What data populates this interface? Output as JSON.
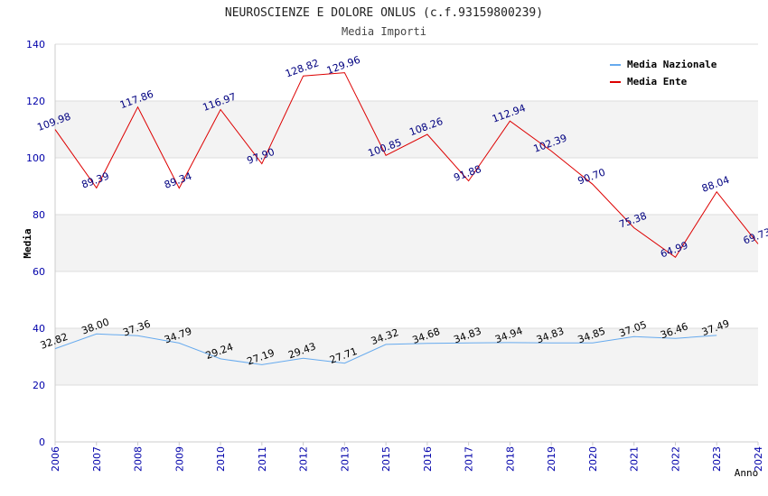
{
  "chart_data": {
    "type": "line",
    "title": "NEUROSCIENZE E DOLORE ONLUS (c.f.93159800239)",
    "subtitle": "Media Importi",
    "xlabel": "Anno",
    "ylabel": "Media",
    "ylim": [
      0,
      140
    ],
    "yticks": [
      "0",
      "20",
      "40",
      "60",
      "80",
      "100",
      "120",
      "140"
    ],
    "categories": [
      "2006",
      "2007",
      "2008",
      "2009",
      "2010",
      "2011",
      "2012",
      "2013",
      "2015",
      "2016",
      "2017",
      "2018",
      "2019",
      "2020",
      "2021",
      "2022",
      "2023",
      "2024"
    ],
    "legend_position": "top-right",
    "series": [
      {
        "name": "Media Nazionale",
        "color": "#66aaee",
        "label_color": "#000000",
        "values": [
          32.82,
          38.0,
          37.36,
          34.79,
          29.24,
          27.19,
          29.43,
          27.71,
          34.32,
          34.68,
          34.83,
          34.94,
          34.83,
          34.85,
          37.05,
          36.46,
          37.49,
          null
        ],
        "labels": [
          "32.82",
          "38.00",
          "37.36",
          "34.79",
          "29.24",
          "27.19",
          "29.43",
          "27.71",
          "34.32",
          "34.68",
          "34.83",
          "34.94",
          "34.83",
          "34.85",
          "37.05",
          "36.46",
          "37.49",
          null
        ]
      },
      {
        "name": "Media Ente",
        "color": "#dd0000",
        "label_color": "#000080",
        "values": [
          109.98,
          89.39,
          117.86,
          89.34,
          116.97,
          97.9,
          128.82,
          129.96,
          100.85,
          108.26,
          91.88,
          112.94,
          102.39,
          90.7,
          75.38,
          64.99,
          88.04,
          69.73
        ],
        "labels": [
          "109.98",
          "89.39",
          "117.86",
          "89.34",
          "116.97",
          "97.90",
          "128.82",
          "129.96",
          "100.85",
          "108.26",
          "91.88",
          "112.94",
          "102.39",
          "90.70",
          "75.38",
          "64.99",
          "88.04",
          "69.73"
        ]
      }
    ]
  }
}
